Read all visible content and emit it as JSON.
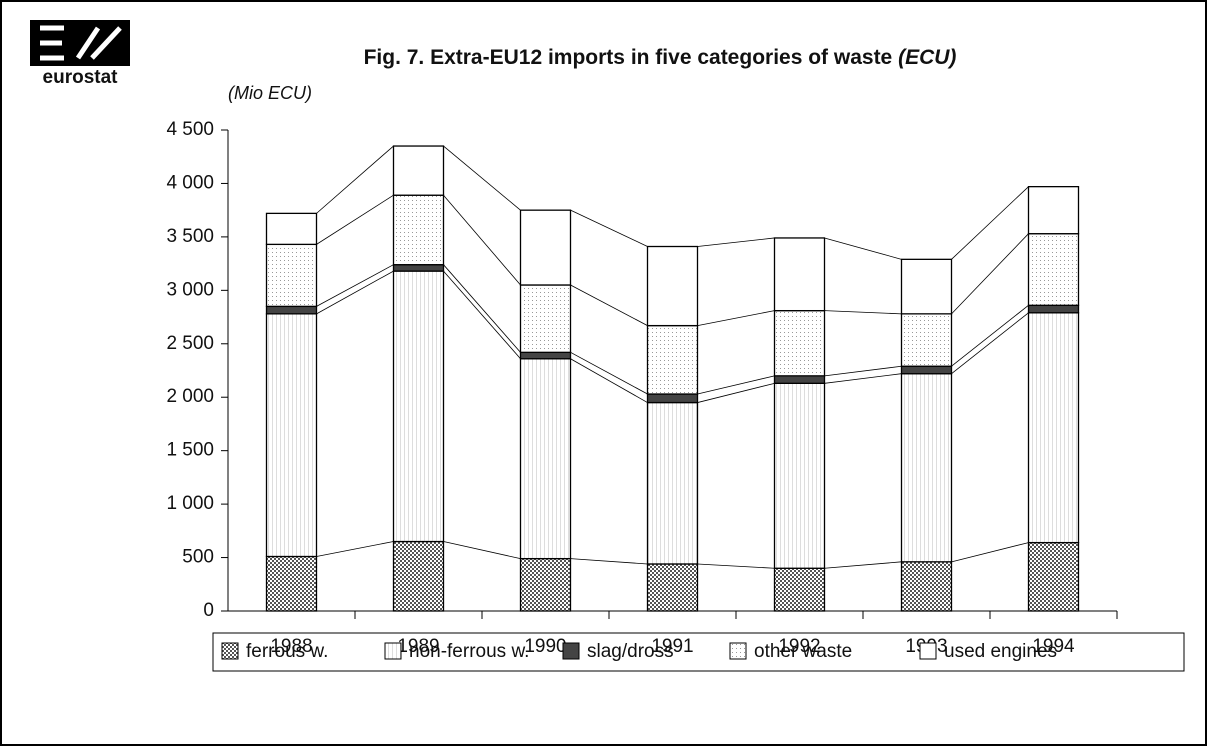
{
  "logo": "eurostat",
  "chart_data": {
    "type": "stacked_bar",
    "title": "Fig. 7. Extra-EU12 imports in five categories of waste",
    "title_unit": "(ECU)",
    "y_label": "(Mio ECU)",
    "categories": [
      "1988",
      "1989",
      "1990",
      "1991",
      "1992",
      "1993",
      "1994"
    ],
    "series": [
      {
        "name": "ferrous w.",
        "color": "#555555",
        "values": [
          510,
          650,
          490,
          440,
          400,
          460,
          640
        ]
      },
      {
        "name": "non-ferrous w.",
        "color": "#dddddd",
        "values": [
          2270,
          2530,
          1870,
          1510,
          1730,
          1760,
          2150
        ]
      },
      {
        "name": "slag/dross",
        "color": "#444444",
        "values": [
          70,
          60,
          60,
          80,
          70,
          70,
          70
        ]
      },
      {
        "name": "other waste",
        "color": "#999999",
        "values": [
          580,
          650,
          630,
          640,
          610,
          490,
          670
        ]
      },
      {
        "name": "used engines",
        "color": "#ffffff",
        "values": [
          290,
          460,
          700,
          740,
          680,
          510,
          440
        ]
      }
    ],
    "ylim": [
      0,
      4500
    ],
    "yticks": [
      0,
      500,
      {
        "value": 1000,
        "label": "1 000"
      },
      {
        "value": 1500,
        "label": "1 500"
      },
      {
        "value": 2000,
        "label": "2 000"
      },
      {
        "value": 2500,
        "label": "2 500"
      },
      {
        "value": 3000,
        "label": "3 000"
      },
      {
        "value": 3500,
        "label": "3 500"
      },
      {
        "value": 4000,
        "label": "4 000"
      },
      {
        "value": 4500,
        "label": "4 500"
      }
    ],
    "legend": "bottom"
  }
}
